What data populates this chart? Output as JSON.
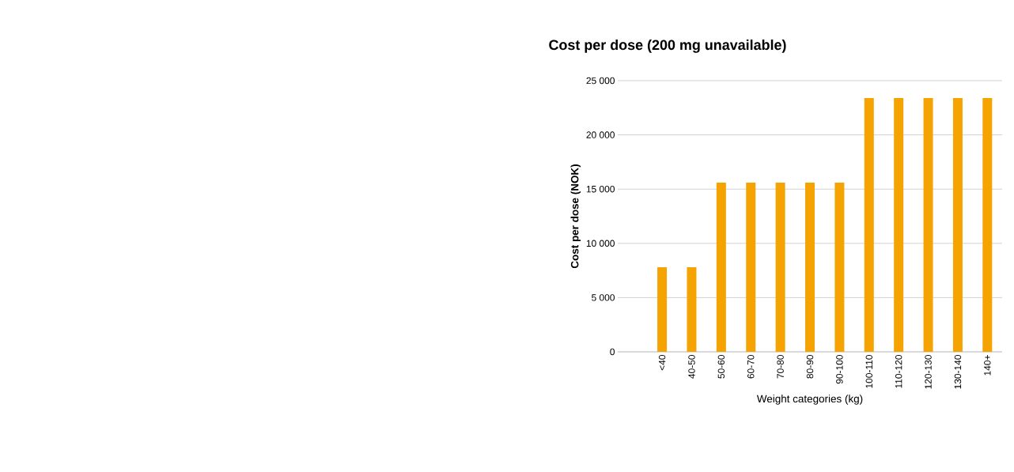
{
  "chart_data": {
    "type": "bar",
    "title": "Cost per dose (200 mg unavailable)",
    "xlabel": "Weight categories (kg)",
    "ylabel": "Cost per dose (NOK)",
    "categories": [
      null,
      "<40",
      "40-50",
      "50-60",
      "60-70",
      "70-80",
      "80-90",
      "90-100",
      "100-110",
      "110-120",
      "120-130",
      "130-140",
      "140+"
    ],
    "values": [
      null,
      7800,
      7800,
      15600,
      15600,
      15600,
      15600,
      15600,
      23400,
      23400,
      23400,
      23400,
      23400
    ],
    "color": "#f5a300",
    "ylim": [
      0,
      25000
    ],
    "yticks": [
      {
        "value": 0,
        "label": "0"
      },
      {
        "value": 5000,
        "label": "5 000"
      },
      {
        "value": 10000,
        "label": "10 000"
      },
      {
        "value": 15000,
        "label": "15 000"
      },
      {
        "value": 20000,
        "label": "20 000"
      },
      {
        "value": 25000,
        "label": "25 000"
      }
    ],
    "grid": "y"
  }
}
